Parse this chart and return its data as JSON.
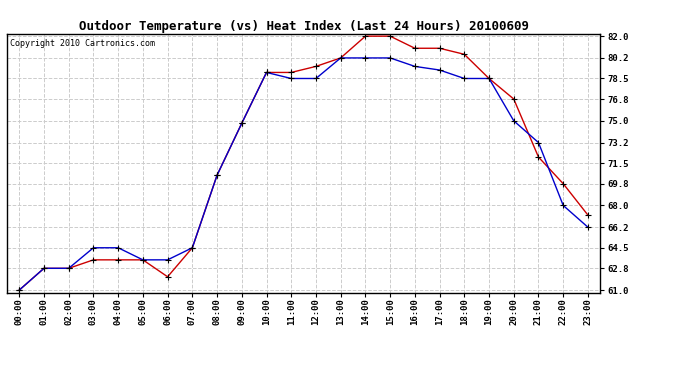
{
  "title": "Outdoor Temperature (vs) Heat Index (Last 24 Hours) 20100609",
  "copyright": "Copyright 2010 Cartronics.com",
  "x_labels": [
    "00:00",
    "01:00",
    "02:00",
    "03:00",
    "04:00",
    "05:00",
    "06:00",
    "07:00",
    "08:00",
    "09:00",
    "10:00",
    "11:00",
    "12:00",
    "13:00",
    "14:00",
    "15:00",
    "16:00",
    "17:00",
    "18:00",
    "19:00",
    "20:00",
    "21:00",
    "22:00",
    "23:00"
  ],
  "temp_red": [
    61.0,
    62.8,
    62.8,
    63.5,
    63.5,
    63.5,
    62.1,
    64.5,
    70.5,
    74.8,
    79.0,
    79.0,
    79.5,
    80.2,
    82.0,
    82.0,
    81.0,
    81.0,
    80.5,
    78.5,
    76.8,
    72.0,
    69.8,
    67.2
  ],
  "temp_blue": [
    61.0,
    62.8,
    62.8,
    64.5,
    64.5,
    63.5,
    63.5,
    64.5,
    70.5,
    74.8,
    79.0,
    78.5,
    78.5,
    80.2,
    80.2,
    80.2,
    79.5,
    79.2,
    78.5,
    78.5,
    75.0,
    73.2,
    68.0,
    66.2
  ],
  "ylim_min": 61.0,
  "ylim_max": 82.0,
  "yticks": [
    61.0,
    62.8,
    64.5,
    66.2,
    68.0,
    69.8,
    71.5,
    73.2,
    75.0,
    76.8,
    78.5,
    80.2,
    82.0
  ],
  "red_color": "#cc0000",
  "blue_color": "#0000cc",
  "background_color": "#ffffff",
  "grid_color": "#cccccc",
  "title_fontsize": 9,
  "copyright_fontsize": 6,
  "tick_fontsize": 6.5
}
